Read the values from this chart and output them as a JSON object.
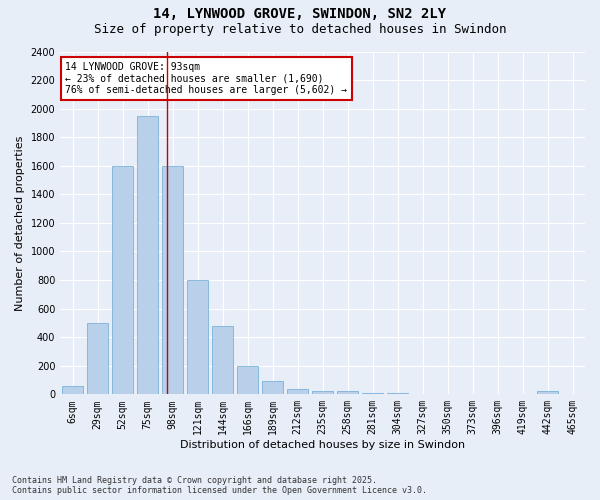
{
  "title": "14, LYNWOOD GROVE, SWINDON, SN2 2LY",
  "subtitle": "Size of property relative to detached houses in Swindon",
  "xlabel": "Distribution of detached houses by size in Swindon",
  "ylabel": "Number of detached properties",
  "categories": [
    "6sqm",
    "29sqm",
    "52sqm",
    "75sqm",
    "98sqm",
    "121sqm",
    "144sqm",
    "166sqm",
    "189sqm",
    "212sqm",
    "235sqm",
    "258sqm",
    "281sqm",
    "304sqm",
    "327sqm",
    "350sqm",
    "373sqm",
    "396sqm",
    "419sqm",
    "442sqm",
    "465sqm"
  ],
  "values": [
    55,
    500,
    1600,
    1950,
    1600,
    800,
    480,
    195,
    90,
    40,
    25,
    20,
    10,
    8,
    5,
    3,
    2,
    1,
    0,
    20,
    0
  ],
  "bar_color": "#b8d0ea",
  "bar_edge_color": "#6aaad4",
  "vline_x": 3.78,
  "vline_color": "#cc0000",
  "annotation_text": "14 LYNWOOD GROVE: 93sqm\n← 23% of detached houses are smaller (1,690)\n76% of semi-detached houses are larger (5,602) →",
  "annotation_box_color": "#ffffff",
  "annotation_box_edge_color": "#cc0000",
  "ylim": [
    0,
    2400
  ],
  "yticks": [
    0,
    200,
    400,
    600,
    800,
    1000,
    1200,
    1400,
    1600,
    1800,
    2000,
    2200,
    2400
  ],
  "background_color": "#e8eef8",
  "grid_color": "#ffffff",
  "footnote": "Contains HM Land Registry data © Crown copyright and database right 2025.\nContains public sector information licensed under the Open Government Licence v3.0.",
  "title_fontsize": 10,
  "subtitle_fontsize": 9,
  "axis_label_fontsize": 8,
  "tick_fontsize": 7,
  "annotation_fontsize": 7,
  "footnote_fontsize": 6
}
